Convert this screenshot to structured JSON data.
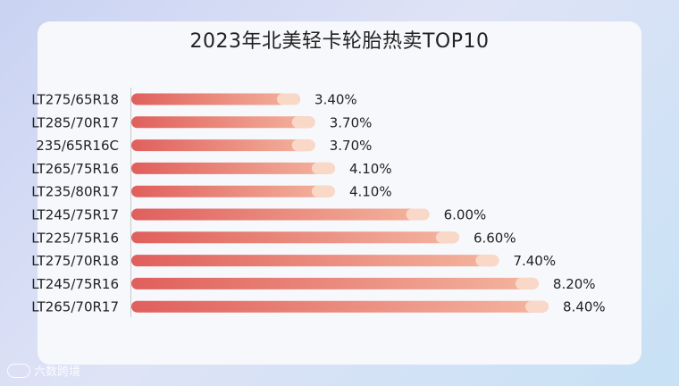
{
  "chart_data": {
    "type": "bar",
    "orientation": "horizontal",
    "title": "2023年北美轻卡轮胎热卖TOP10",
    "categories": [
      "LT275/65R18",
      "LT285/70R17",
      "235/65R16C",
      "LT265/75R16",
      "LT235/80R17",
      "LT245/75R17",
      "LT225/75R16",
      "LT275/70R18",
      "LT245/75R16",
      "LT265/70R17"
    ],
    "values": [
      3.4,
      3.7,
      3.7,
      4.1,
      4.1,
      6.0,
      6.6,
      7.4,
      8.2,
      8.4
    ],
    "value_labels": [
      "3.40%",
      "3.70%",
      "3.70%",
      "4.10%",
      "4.10%",
      "6.00%",
      "6.60%",
      "7.40%",
      "8.20%",
      "8.40%"
    ],
    "unit": "%",
    "grid": false,
    "colors": {
      "bar_start": "#e05f5c",
      "bar_end": "#f4b59f",
      "bar_cap": "#f9d8c8"
    }
  },
  "watermark": {
    "text": "六数跨境"
  }
}
